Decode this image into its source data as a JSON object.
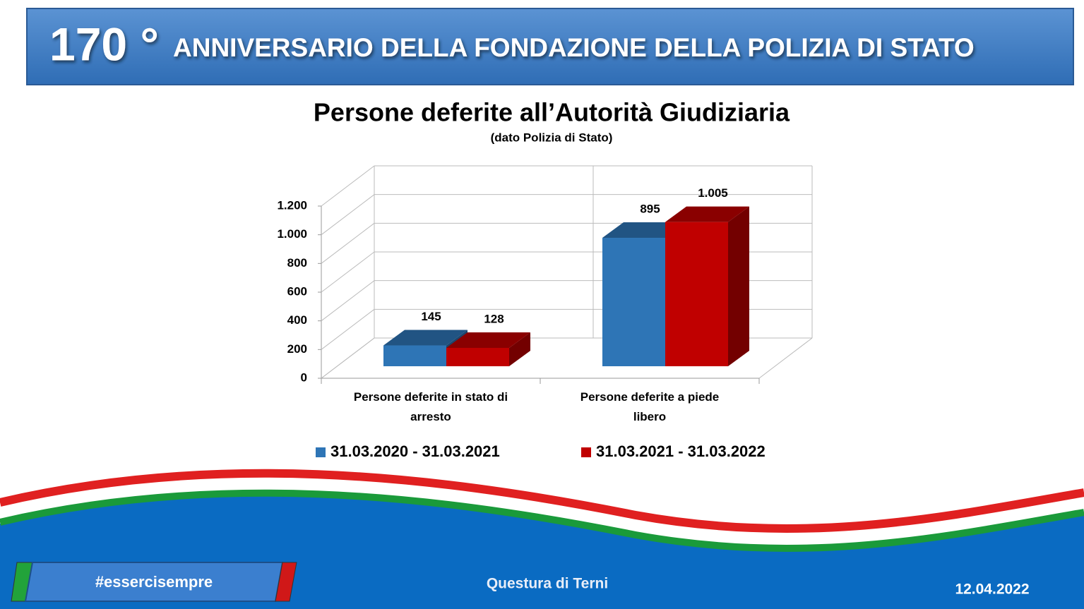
{
  "header": {
    "number": "170 °",
    "title": "ANNIVERSARIO DELLA FONDAZIONE DELLA POLIZIA DI STATO"
  },
  "chart_data": {
    "type": "bar3d",
    "title": "Persone deferite all’Autorità Giudiziaria",
    "subtitle": "(dato Polizia di Stato)",
    "categories": [
      "Persone deferite in stato di arresto",
      "Persone deferite a piede libero"
    ],
    "series": [
      {
        "name": "31.03.2020 - 31.03.2021",
        "color": "#2e75b6",
        "values": [
          145,
          895
        ]
      },
      {
        "name": "31.03.2021 - 31.03.2022",
        "color": "#c00000",
        "values": [
          128,
          1005
        ],
        "value_labels": [
          "128",
          "1.005"
        ]
      }
    ],
    "ylim": [
      0,
      1200
    ],
    "yticks": [
      0,
      200,
      400,
      600,
      800,
      {
        "value": 1000,
        "label": "1.000"
      },
      {
        "value": 1200,
        "label": "1.200"
      }
    ],
    "grid": true,
    "legend": "bottom"
  },
  "footer": {
    "hashtag": "#essercisempre",
    "office": "Questura di Terni",
    "date": "12.04.2022"
  }
}
